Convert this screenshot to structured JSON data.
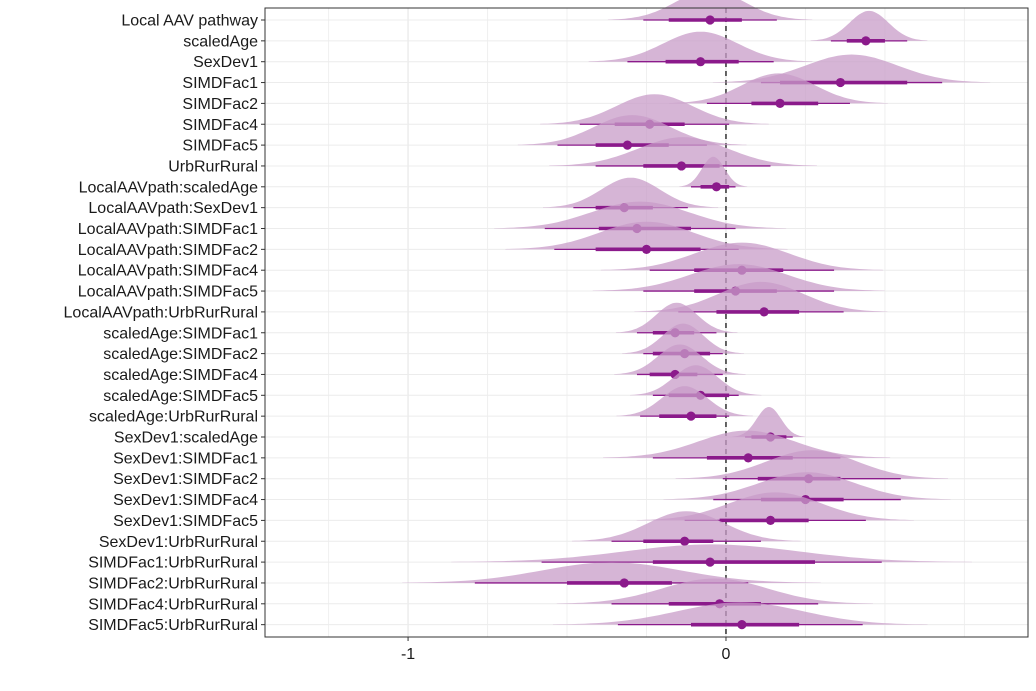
{
  "chart_data": {
    "type": "ridge-interval",
    "xlabel": "",
    "ylabel": "",
    "xlim": [
      -1.45,
      0.95
    ],
    "x_ticks": [
      -1,
      0
    ],
    "x_tick_labels": [
      "-1",
      "0"
    ],
    "reference_line": 0,
    "grid": true,
    "colors": {
      "fill": "#c89cc8",
      "point": "#8b1a8b",
      "interval": "#8b1a8b",
      "frame": "#333333"
    },
    "rows": [
      {
        "label": "Local AAV pathway",
        "median": -0.05,
        "inner": [
          -0.18,
          0.05
        ],
        "outer": [
          -0.26,
          0.16
        ]
      },
      {
        "label": "scaledAge",
        "median": 0.44,
        "inner": [
          0.38,
          0.5
        ],
        "outer": [
          0.33,
          0.57
        ]
      },
      {
        "label": "SexDev1",
        "median": -0.08,
        "inner": [
          -0.19,
          0.04
        ],
        "outer": [
          -0.31,
          0.15
        ]
      },
      {
        "label": "SIMDFac1",
        "median": 0.36,
        "inner": [
          0.17,
          0.57
        ],
        "outer": [
          0.11,
          0.68
        ]
      },
      {
        "label": "SIMDFac2",
        "median": 0.17,
        "inner": [
          0.08,
          0.29
        ],
        "outer": [
          -0.06,
          0.39
        ]
      },
      {
        "label": "SIMDFac4",
        "median": -0.24,
        "inner": [
          -0.35,
          -0.13
        ],
        "outer": [
          -0.46,
          0.01
        ]
      },
      {
        "label": "SIMDFac5",
        "median": -0.31,
        "inner": [
          -0.41,
          -0.18
        ],
        "outer": [
          -0.53,
          -0.06
        ]
      },
      {
        "label": "UrbRurRural",
        "median": -0.14,
        "inner": [
          -0.26,
          -0.02
        ],
        "outer": [
          -0.41,
          0.14
        ]
      },
      {
        "label": "LocalAAVpath:scaledAge",
        "median": -0.03,
        "inner": [
          -0.08,
          0.01
        ],
        "outer": [
          -0.11,
          0.03
        ]
      },
      {
        "label": "LocalAAVpath:SexDev1",
        "median": -0.32,
        "inner": [
          -0.41,
          -0.23
        ],
        "outer": [
          -0.48,
          -0.12
        ]
      },
      {
        "label": "LocalAAVpath:SIMDFac1",
        "median": -0.28,
        "inner": [
          -0.4,
          -0.11
        ],
        "outer": [
          -0.57,
          0.03
        ]
      },
      {
        "label": "LocalAAVpath:SIMDFac2",
        "median": -0.25,
        "inner": [
          -0.41,
          -0.08
        ],
        "outer": [
          -0.54,
          0.04
        ]
      },
      {
        "label": "LocalAAVpath:SIMDFac4",
        "median": 0.05,
        "inner": [
          -0.1,
          0.18
        ],
        "outer": [
          -0.24,
          0.34
        ]
      },
      {
        "label": "LocalAAVpath:SIMDFac5",
        "median": 0.03,
        "inner": [
          -0.1,
          0.16
        ],
        "outer": [
          -0.26,
          0.34
        ]
      },
      {
        "label": "LocalAAVpath:UrbRurRural",
        "median": 0.12,
        "inner": [
          -0.03,
          0.23
        ],
        "outer": [
          -0.15,
          0.37
        ]
      },
      {
        "label": "scaledAge:SIMDFac1",
        "median": -0.16,
        "inner": [
          -0.23,
          -0.1
        ],
        "outer": [
          -0.28,
          -0.03
        ]
      },
      {
        "label": "scaledAge:SIMDFac2",
        "median": -0.13,
        "inner": [
          -0.23,
          -0.05
        ],
        "outer": [
          -0.26,
          -0.01
        ]
      },
      {
        "label": "scaledAge:SIMDFac4",
        "median": -0.16,
        "inner": [
          -0.24,
          -0.09
        ],
        "outer": [
          -0.28,
          -0.01
        ]
      },
      {
        "label": "scaledAge:SIMDFac5",
        "median": -0.08,
        "inner": [
          -0.18,
          0.01
        ],
        "outer": [
          -0.23,
          0.04
        ]
      },
      {
        "label": "scaledAge:UrbRurRural",
        "median": -0.11,
        "inner": [
          -0.21,
          -0.03
        ],
        "outer": [
          -0.27,
          0.01
        ]
      },
      {
        "label": "SexDev1:scaledAge",
        "median": 0.14,
        "inner": [
          0.08,
          0.19
        ],
        "outer": [
          0.06,
          0.21
        ]
      },
      {
        "label": "SexDev1:SIMDFac1",
        "median": 0.07,
        "inner": [
          -0.06,
          0.21
        ],
        "outer": [
          -0.23,
          0.36
        ]
      },
      {
        "label": "SexDev1:SIMDFac2",
        "median": 0.26,
        "inner": [
          0.1,
          0.36
        ],
        "outer": [
          -0.01,
          0.55
        ]
      },
      {
        "label": "SexDev1:SIMDFac4",
        "median": 0.25,
        "inner": [
          0.11,
          0.37
        ],
        "outer": [
          -0.04,
          0.55
        ]
      },
      {
        "label": "SexDev1:SIMDFac5",
        "median": 0.14,
        "inner": [
          -0.02,
          0.26
        ],
        "outer": [
          -0.13,
          0.44
        ]
      },
      {
        "label": "SexDev1:UrbRurRural",
        "median": -0.13,
        "inner": [
          -0.26,
          -0.04
        ],
        "outer": [
          -0.36,
          0.11
        ]
      },
      {
        "label": "SIMDFac1:UrbRurRural",
        "median": -0.05,
        "inner": [
          -0.23,
          0.28
        ],
        "outer": [
          -0.58,
          0.49
        ]
      },
      {
        "label": "SIMDFac2:UrbRurRural",
        "median": -0.32,
        "inner": [
          -0.5,
          -0.17
        ],
        "outer": [
          -0.79,
          0.07
        ]
      },
      {
        "label": "SIMDFac4:UrbRurRural",
        "median": -0.02,
        "inner": [
          -0.18,
          0.11
        ],
        "outer": [
          -0.36,
          0.29
        ]
      },
      {
        "label": "SIMDFac5:UrbRurRural",
        "median": 0.05,
        "inner": [
          -0.11,
          0.23
        ],
        "outer": [
          -0.34,
          0.43
        ]
      }
    ]
  }
}
